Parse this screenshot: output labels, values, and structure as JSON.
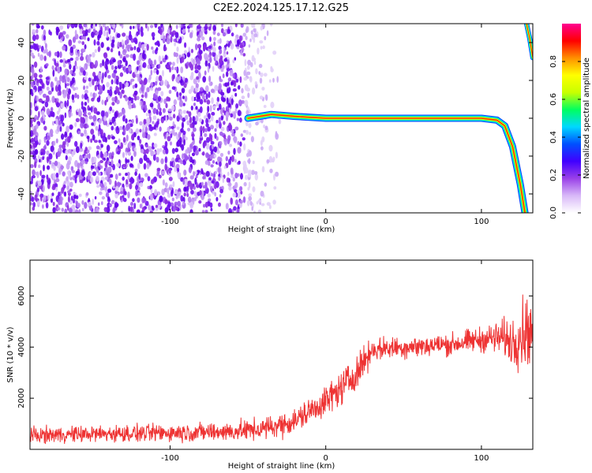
{
  "figure": {
    "title": "C2E2.2024.125.17.12.G25"
  },
  "chart_data": [
    {
      "type": "heatmap",
      "title": "",
      "xlabel": "Height of straight line (km)",
      "ylabel": "Frequency (Hz)",
      "xlim": [
        -190,
        133
      ],
      "ylim": [
        -50,
        50
      ],
      "x_ticks": [
        -100,
        0,
        100
      ],
      "x_tick_labels": [
        "-100",
        "0",
        "100"
      ],
      "y_ticks": [
        -40,
        -20,
        0,
        20,
        40
      ],
      "y_tick_labels": [
        "-40",
        "-20",
        "0",
        "20",
        "40"
      ],
      "grid": false,
      "noise_region_x": [
        -190,
        -28
      ],
      "signal_track": [
        {
          "x": -50,
          "f": 0
        },
        {
          "x": -35,
          "f": 2
        },
        {
          "x": -20,
          "f": 1
        },
        {
          "x": 0,
          "f": 0
        },
        {
          "x": 50,
          "f": 0
        },
        {
          "x": 100,
          "f": 0
        },
        {
          "x": 110,
          "f": -1
        },
        {
          "x": 115,
          "f": -4
        },
        {
          "x": 120,
          "f": -15
        },
        {
          "x": 125,
          "f": -35
        },
        {
          "x": 128,
          "f": -50
        }
      ],
      "secondary_track": [
        {
          "x": 129,
          "f": 50
        },
        {
          "x": 131,
          "f": 42
        },
        {
          "x": 133,
          "f": 32
        }
      ],
      "colorbar": {
        "label": "Normalized spectral amplitude",
        "range": [
          0,
          1
        ],
        "ticks": [
          0,
          0.2,
          0.4,
          0.6,
          0.8
        ],
        "tick_labels": [
          "0.0",
          "0.2",
          "0.4",
          "0.6",
          "0.8"
        ],
        "colors": [
          "#ffffff",
          "#d8b8f8",
          "#9a40e8",
          "#4000ff",
          "#0050ff",
          "#00d8ff",
          "#00ff60",
          "#c8ff00",
          "#ffff00",
          "#ff9000",
          "#ff0000",
          "#ff0090"
        ]
      }
    },
    {
      "type": "line",
      "title": "",
      "xlabel": "Height of straight line (km)",
      "ylabel": "SNR (10 * v/v)",
      "xlim": [
        -190,
        133
      ],
      "ylim": [
        0,
        7400
      ],
      "x_ticks": [
        -100,
        0,
        100
      ],
      "x_tick_labels": [
        "-100",
        "0",
        "100"
      ],
      "y_ticks": [
        2000,
        4000,
        6000
      ],
      "y_tick_labels": [
        "2000",
        "4000",
        "6000"
      ],
      "grid": false,
      "series": [
        {
          "color": "#ee3333",
          "x": [
            -190,
            -150,
            -100,
            -60,
            -40,
            -20,
            -10,
            0,
            10,
            20,
            25,
            30,
            50,
            80,
            100,
            105,
            115,
            120,
            125,
            130,
            133
          ],
          "y": [
            550,
            600,
            650,
            700,
            800,
            1100,
            1500,
            1900,
            2400,
            3000,
            3500,
            3900,
            4000,
            4100,
            4300,
            4350,
            4350,
            4200,
            4500,
            4700,
            4600
          ],
          "noise_amplitude": [
            280,
            300,
            320,
            350,
            400,
            450,
            500,
            550,
            600,
            600,
            550,
            400,
            400,
            400,
            450,
            500,
            700,
            900,
            1200,
            1300,
            1200
          ]
        }
      ]
    }
  ]
}
